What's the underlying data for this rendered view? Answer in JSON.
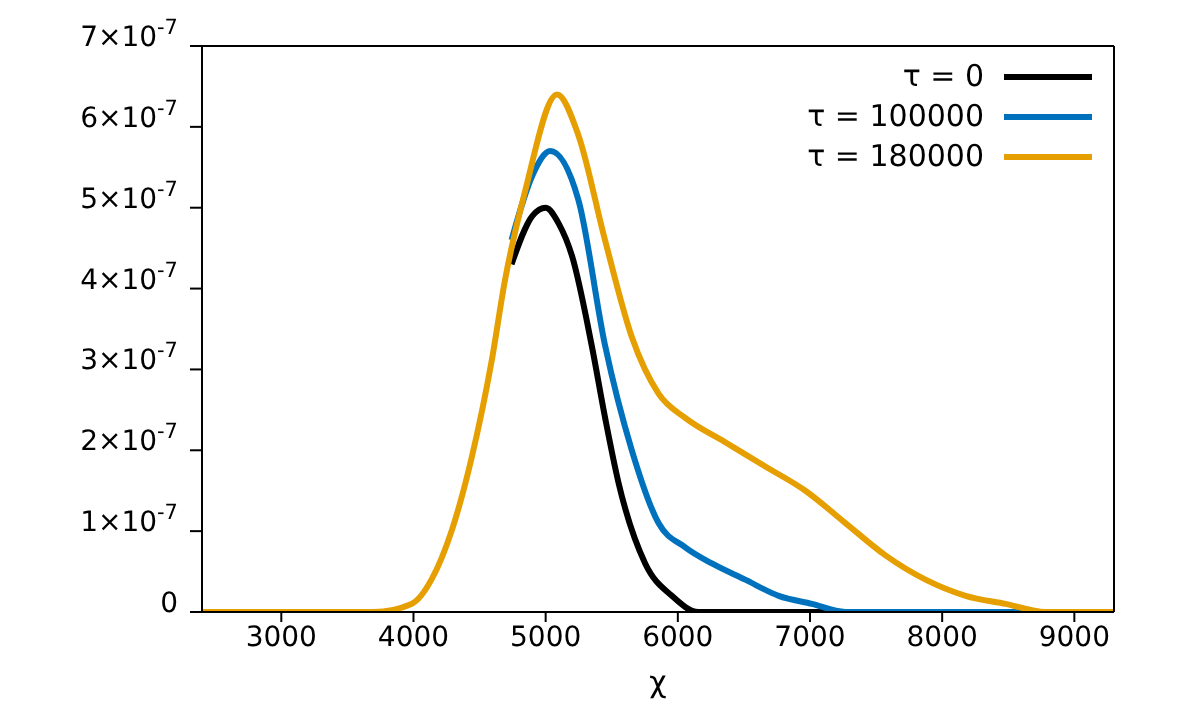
{
  "chart_data": {
    "type": "line",
    "xlabel": "χ",
    "xlim": [
      2400,
      9300
    ],
    "xticks": [
      3000,
      4000,
      5000,
      6000,
      7000,
      8000,
      9000
    ],
    "ylim": [
      0,
      7e-07
    ],
    "yticks": [
      {
        "value": 0,
        "label": "0"
      },
      {
        "value": 1e-07,
        "label": "1×10$^{-7}$"
      },
      {
        "value": 2e-07,
        "label": "2×10$^{-7}$"
      },
      {
        "value": 3e-07,
        "label": "3×10$^{-7}$"
      },
      {
        "value": 4e-07,
        "label": "4×10$^{-7}$"
      },
      {
        "value": 5e-07,
        "label": "5×10$^{-7}$"
      },
      {
        "value": 6e-07,
        "label": "6×10$^{-7}$"
      },
      {
        "value": 7e-07,
        "label": "7×10$^{-7}$"
      }
    ],
    "grid": false,
    "legend": "top right",
    "marker": "none",
    "line_style": "solid",
    "series": [
      {
        "name": "τ = 0",
        "color": "#000000",
        "x": [
          4742,
          4900,
          5000,
          5100,
          5200,
          5348,
          5450,
          5551,
          5753,
          5955,
          6157,
          6500,
          9300
        ],
        "values": [
          4.3e-07,
          4.9e-07,
          5e-07,
          4.8e-07,
          4.4e-07,
          3.3e-07,
          2.4e-07,
          1.6e-07,
          6e-08,
          2e-08,
          0,
          0,
          0
        ]
      },
      {
        "name": "τ = 100000",
        "color": "#0072bd",
        "x": [
          4742,
          4900,
          5035,
          5247,
          5449,
          5652,
          5854,
          6056,
          6258,
          6510,
          6763,
          7015,
          7268,
          7520,
          9300
        ],
        "values": [
          4.6e-07,
          5.4e-07,
          5.7e-07,
          5.1e-07,
          3.3e-07,
          2e-07,
          1.1e-07,
          8e-08,
          6e-08,
          4e-08,
          2e-08,
          1e-08,
          0,
          0,
          0
        ]
      },
      {
        "name": "τ = 180000",
        "color": "#e69f00",
        "x": [
          2400,
          3700,
          3985,
          4136,
          4288,
          4439,
          4591,
          4692,
          4844,
          5086,
          5247,
          5449,
          5652,
          5854,
          6056,
          6359,
          6662,
          6965,
          7268,
          7571,
          7874,
          8177,
          8480,
          8783,
          8985,
          9300
        ],
        "values": [
          0,
          0,
          1e-08,
          4e-08,
          1e-07,
          1.9e-07,
          3.1e-07,
          4.1e-07,
          5.2e-07,
          6.4e-07,
          5.9e-07,
          4.6e-07,
          3.4e-07,
          2.7e-07,
          2.4e-07,
          2.1e-07,
          1.8e-07,
          1.5e-07,
          1.1e-07,
          7e-08,
          4e-08,
          2e-08,
          1e-08,
          0,
          0,
          0
        ]
      }
    ]
  }
}
